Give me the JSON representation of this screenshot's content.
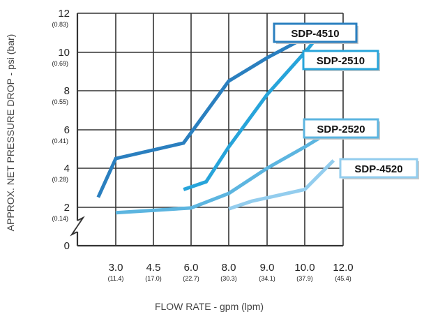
{
  "chart_data": {
    "type": "line",
    "title": "",
    "xlabel": "FLOW RATE - gpm (lpm)",
    "ylabel": "APPROX. NET PRESSURE DROP - psi (bar)",
    "x_ticks": [
      {
        "label": "3.0",
        "sub": "(11.4)"
      },
      {
        "label": "4.5",
        "sub": "(17.0)"
      },
      {
        "label": "6.0",
        "sub": "(22.7)"
      },
      {
        "label": "8.0",
        "sub": "(30.3)"
      },
      {
        "label": "9.0",
        "sub": "(34.1)"
      },
      {
        "label": "10.0",
        "sub": "(37.9)"
      },
      {
        "label": "12.0",
        "sub": "(45.4)"
      }
    ],
    "y_ticks": [
      {
        "value": 0,
        "label": "0",
        "sub": ""
      },
      {
        "value": 2,
        "label": "2",
        "sub": "(0.14)"
      },
      {
        "value": 4,
        "label": "4",
        "sub": "(0.28)"
      },
      {
        "value": 6,
        "label": "6",
        "sub": "(0.41)"
      },
      {
        "value": 8,
        "label": "8",
        "sub": "(0.55)"
      },
      {
        "value": 10,
        "label": "10",
        "sub": "(0.69)"
      },
      {
        "value": 12,
        "label": "12",
        "sub": "(0.83)"
      }
    ],
    "ylim": [
      0,
      12
    ],
    "grid": true,
    "series": [
      {
        "name": "SDP-4510",
        "color": "#2a7fbf",
        "points": [
          [
            2.3,
            2.5
          ],
          [
            3.0,
            4.5
          ],
          [
            5.7,
            5.3
          ],
          [
            8.0,
            8.5
          ],
          [
            9.0,
            9.7
          ],
          [
            10.5,
            11.0
          ]
        ]
      },
      {
        "name": "SDP-2510",
        "color": "#27a4da",
        "points": [
          [
            5.7,
            2.9
          ],
          [
            6.8,
            3.3
          ],
          [
            8.0,
            5.1
          ],
          [
            9.0,
            7.8
          ],
          [
            10.2,
            10.2
          ],
          [
            11.0,
            11.2
          ]
        ]
      },
      {
        "name": "SDP-2520",
        "color": "#5cb5e0",
        "points": [
          [
            3.0,
            1.7
          ],
          [
            6.0,
            1.95
          ],
          [
            8.0,
            2.7
          ],
          [
            9.0,
            4.0
          ],
          [
            10.0,
            5.1
          ],
          [
            11.5,
            6.0
          ]
        ]
      },
      {
        "name": "SDP-4520",
        "color": "#93cdee",
        "points": [
          [
            8.0,
            1.9
          ],
          [
            8.6,
            2.3
          ],
          [
            10.0,
            2.9
          ],
          [
            11.5,
            4.4
          ]
        ]
      }
    ],
    "legend_placement": "right, at line ends"
  }
}
